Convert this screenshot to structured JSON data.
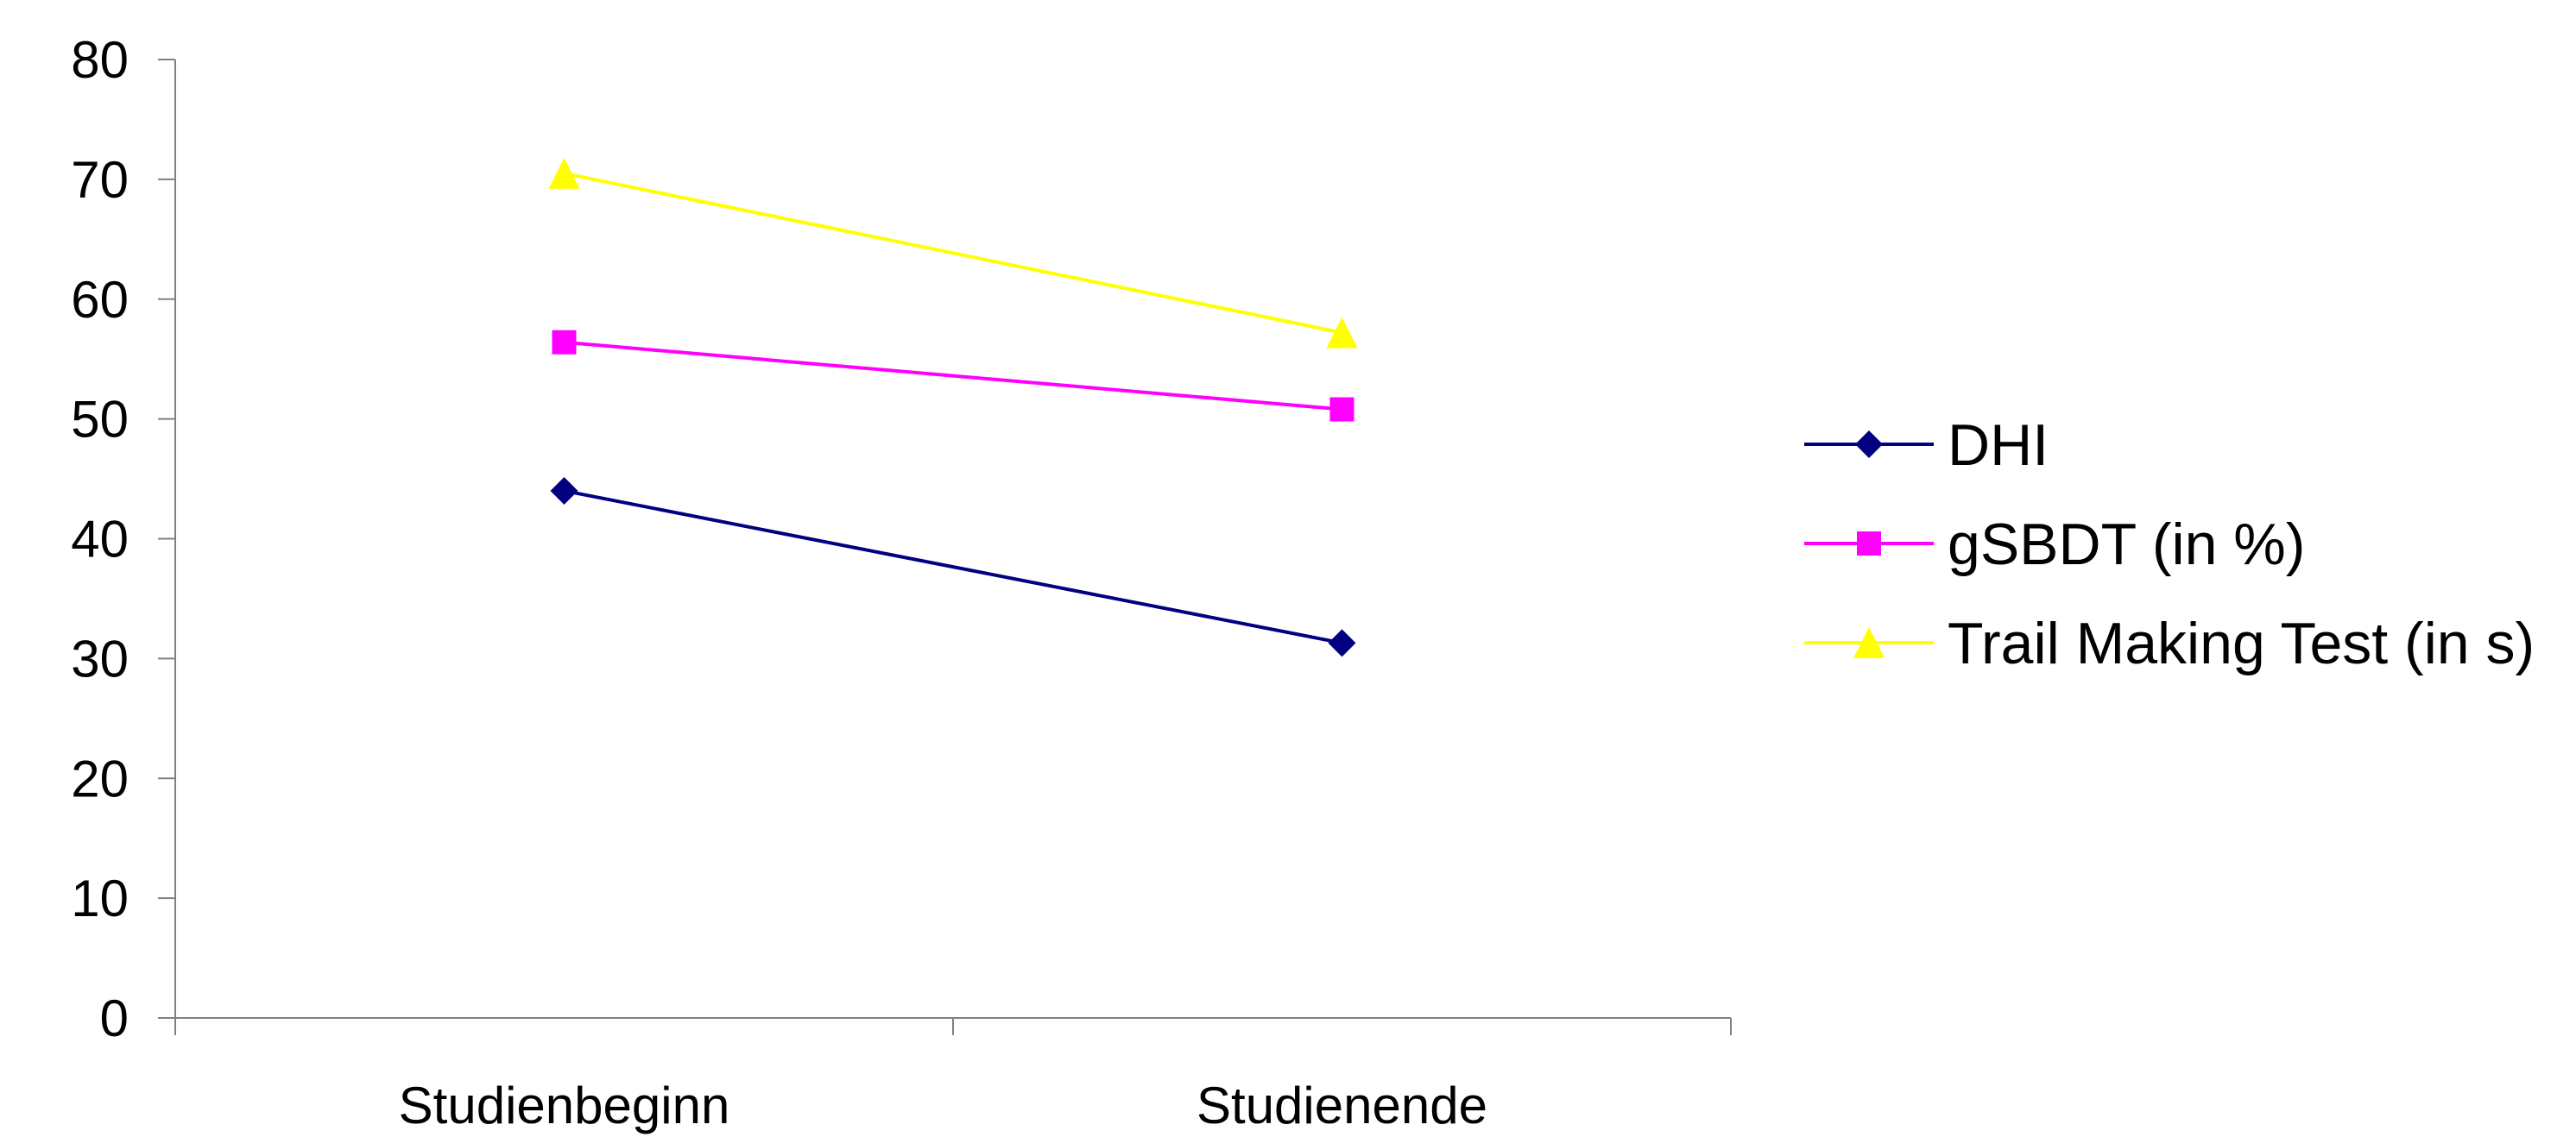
{
  "chart_data": {
    "type": "line",
    "categories": [
      "Studienbeginn",
      "Studienende"
    ],
    "ylim": [
      0,
      80
    ],
    "yticks": [
      0,
      10,
      20,
      30,
      40,
      50,
      60,
      70,
      80
    ],
    "grid": false,
    "legend_position": "right",
    "series": [
      {
        "name": "DHI",
        "values": [
          44,
          31.3
        ],
        "color": "#000080",
        "marker": "diamond"
      },
      {
        "name": "gSBDT (in %)",
        "values": [
          56.4,
          50.8
        ],
        "color": "#ff00ff",
        "marker": "square"
      },
      {
        "name": "Trail Making Test (in s)",
        "values": [
          70.5,
          57.2
        ],
        "color": "#ffff00",
        "marker": "triangle"
      }
    ]
  }
}
